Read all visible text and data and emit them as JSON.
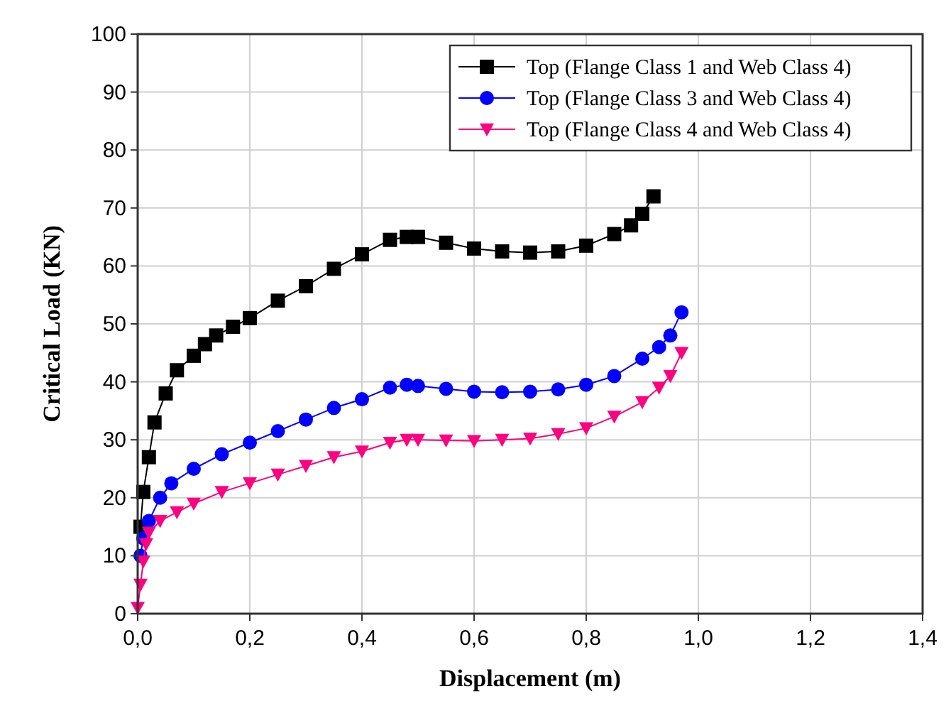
{
  "chart_data": {
    "type": "line",
    "xlabel": "Displacement (m)",
    "ylabel": "Critical Load (KN)",
    "xlim": [
      0,
      1.4
    ],
    "ylim": [
      0,
      100
    ],
    "xticks": [
      {
        "value": 0,
        "label": "0,0"
      },
      {
        "value": 0.2,
        "label": "0,2"
      },
      {
        "value": 0.4,
        "label": "0,4"
      },
      {
        "value": 0.6,
        "label": "0,6"
      },
      {
        "value": 0.8,
        "label": "0,8"
      },
      {
        "value": 1.0,
        "label": "1,0"
      },
      {
        "value": 1.2,
        "label": "1,2"
      },
      {
        "value": 1.4,
        "label": "1,4"
      }
    ],
    "yticks": [
      0,
      10,
      20,
      30,
      40,
      50,
      60,
      70,
      80,
      90,
      100
    ],
    "grid": true,
    "legend": "top right",
    "line_style": "solid",
    "series": [
      {
        "name": "Top (Flange Class 1 and Web Class 4)",
        "color": "#000000",
        "marker": "square",
        "x": [
          0.005,
          0.01,
          0.02,
          0.03,
          0.05,
          0.07,
          0.1,
          0.12,
          0.14,
          0.17,
          0.2,
          0.25,
          0.3,
          0.35,
          0.4,
          0.45,
          0.48,
          0.5,
          0.55,
          0.6,
          0.65,
          0.7,
          0.75,
          0.8,
          0.85,
          0.88,
          0.9,
          0.92
        ],
        "values": [
          15,
          21,
          27,
          33,
          38,
          42,
          44.5,
          46.5,
          48,
          49.5,
          51,
          54,
          56.5,
          59.5,
          62,
          64.5,
          65,
          65,
          64,
          63,
          62.5,
          62.3,
          62.5,
          63.5,
          65.5,
          67,
          69,
          72
        ]
      },
      {
        "name": "Top (Flange Class 3 and Web Class 4)",
        "color": "#0000ff",
        "marker": "circle",
        "x": [
          0.005,
          0.01,
          0.02,
          0.04,
          0.06,
          0.1,
          0.15,
          0.2,
          0.25,
          0.3,
          0.35,
          0.4,
          0.45,
          0.48,
          0.5,
          0.55,
          0.6,
          0.65,
          0.7,
          0.75,
          0.8,
          0.85,
          0.9,
          0.93,
          0.95,
          0.97
        ],
        "values": [
          10,
          13,
          16,
          20,
          22.5,
          25,
          27.5,
          29.5,
          31.5,
          33.5,
          35.5,
          37,
          39,
          39.5,
          39.3,
          38.8,
          38.3,
          38.2,
          38.3,
          38.7,
          39.5,
          41,
          44,
          46,
          48,
          52
        ]
      },
      {
        "name": "Top (Flange Class 4 and Web Class 4)",
        "color": "#ff0080",
        "marker": "triangle",
        "x": [
          0,
          0.005,
          0.01,
          0.015,
          0.02,
          0.04,
          0.07,
          0.1,
          0.15,
          0.2,
          0.25,
          0.3,
          0.35,
          0.4,
          0.45,
          0.48,
          0.5,
          0.55,
          0.6,
          0.65,
          0.7,
          0.75,
          0.8,
          0.85,
          0.9,
          0.93,
          0.95,
          0.97
        ],
        "values": [
          1,
          5,
          9,
          12,
          14,
          16,
          17.5,
          19,
          21,
          22.5,
          24,
          25.5,
          27,
          28,
          29.5,
          30,
          30,
          29.9,
          29.8,
          30,
          30.2,
          31,
          32,
          34,
          36.5,
          39,
          41,
          45
        ]
      }
    ]
  }
}
